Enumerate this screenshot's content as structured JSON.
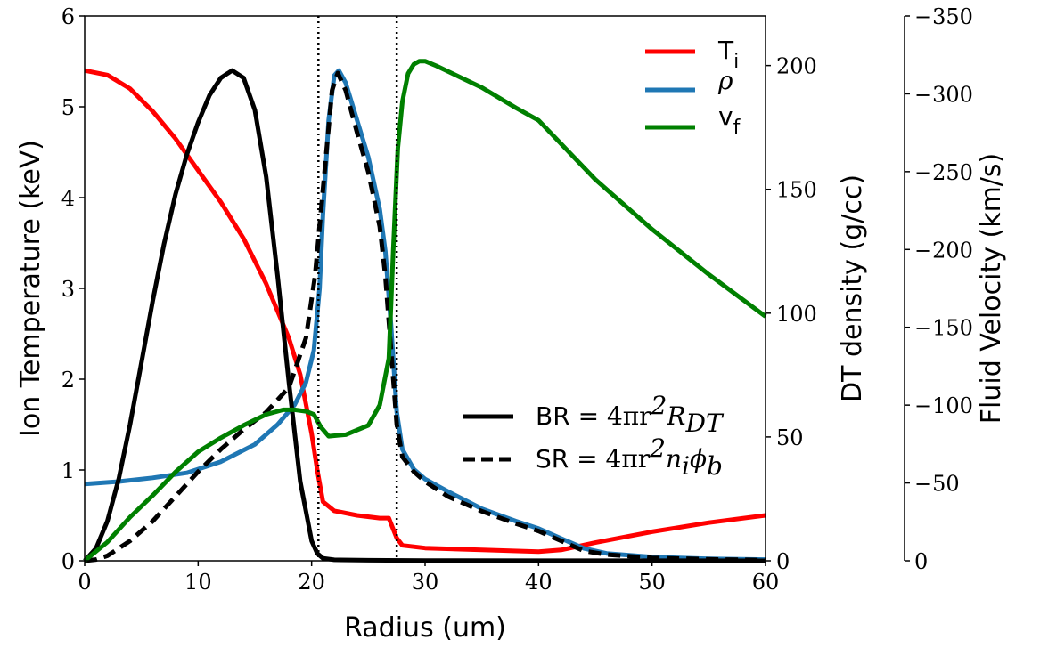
{
  "chart_data": {
    "type": "line",
    "xlabel": "Radius (um)",
    "ylabel_left": "Ion Temperature (keV)",
    "ylabel_right1": "DT density (g/cc)",
    "ylabel_right2": "Fluid Velocity (km/s)",
    "xlim": [
      0,
      60
    ],
    "ylim_left": [
      0,
      6
    ],
    "ylim_right1": [
      0,
      220
    ],
    "ylim_right2": [
      0,
      -350
    ],
    "x_ticks": [
      "0",
      "10",
      "20",
      "30",
      "40",
      "50",
      "60"
    ],
    "y_left_ticks": [
      "0",
      "1",
      "2",
      "3",
      "4",
      "5",
      "6"
    ],
    "y_right1_ticks": [
      "0",
      "50",
      "100",
      "150",
      "200"
    ],
    "y_right2_ticks": [
      "0",
      "−50",
      "−100",
      "−150",
      "−200",
      "−250",
      "−300",
      "−350"
    ],
    "vlines": [
      20.6,
      27.5
    ],
    "legend_top": [
      {
        "label_main": "T",
        "label_sub": "i",
        "color": "#ff0000"
      },
      {
        "label_main": "ρ",
        "label_sub": "",
        "color": "#1f77b4"
      },
      {
        "label_main": "v",
        "label_sub": "f",
        "color": "#008000"
      }
    ],
    "legend_bottom": [
      {
        "label_prefix": "BR = ",
        "label_math": "4πr²R₂ᵀ",
        "label_text": "4πr",
        "label_sup": "2",
        "label_tail": "R",
        "label_tail_sub": "DT",
        "style": "solid",
        "color": "#000000"
      },
      {
        "label_prefix": "SR = ",
        "label_math": "4πr²nᵢϕᵦ",
        "label_text": "4πr",
        "label_sup": "2",
        "label_tail": "n",
        "label_tail_sub": "i",
        "label_tail2": "ϕ",
        "label_tail2_sub": "b",
        "style": "dashed",
        "color": "#000000"
      }
    ],
    "series": [
      {
        "name": "T_i",
        "axis": "left",
        "color": "#ff0000",
        "x": [
          0,
          2,
          4,
          6,
          8,
          10,
          12,
          14,
          16,
          18,
          19,
          20,
          20.5,
          21,
          22,
          24,
          26,
          26.8,
          27.5,
          28,
          30,
          35,
          40,
          42,
          45,
          50,
          55,
          60
        ],
        "y": [
          5.4,
          5.35,
          5.2,
          4.95,
          4.65,
          4.3,
          3.95,
          3.55,
          3.05,
          2.45,
          2.05,
          1.4,
          1.0,
          0.65,
          0.55,
          0.5,
          0.47,
          0.47,
          0.25,
          0.17,
          0.14,
          0.12,
          0.1,
          0.12,
          0.2,
          0.32,
          0.42,
          0.5
        ]
      },
      {
        "name": "rho",
        "axis": "right1",
        "color": "#1f77b4",
        "x": [
          0,
          3,
          6,
          9,
          12,
          15,
          17,
          18.5,
          19.5,
          20.2,
          20.7,
          21,
          21.5,
          22,
          22.4,
          23,
          24,
          25,
          26,
          26.5,
          27,
          27.5,
          28,
          29,
          30,
          32,
          35,
          38,
          40,
          42,
          44,
          46,
          50,
          55,
          60
        ],
        "y": [
          31,
          32,
          33.5,
          35.5,
          40,
          47,
          55,
          63,
          72,
          85,
          110,
          140,
          178,
          196,
          198,
          193,
          178,
          163,
          142,
          125,
          95,
          60,
          45,
          37,
          33,
          28,
          21,
          16,
          13,
          9,
          5,
          3,
          1.5,
          0.8,
          0.5
        ]
      },
      {
        "name": "SR",
        "axis": "right1",
        "color": "#000000",
        "dash": true,
        "x": [
          0,
          1,
          2,
          4,
          6,
          8,
          10,
          12,
          14,
          16,
          18,
          19.5,
          20.3,
          21,
          21.8,
          22.3,
          23,
          24,
          25,
          26,
          26.5,
          27,
          27.5,
          28,
          29,
          30,
          32,
          35,
          38,
          40,
          42,
          44,
          46,
          50,
          55,
          60
        ],
        "y": [
          0,
          0.5,
          2,
          8,
          16,
          26,
          36,
          45,
          53,
          60,
          70,
          90,
          115,
          150,
          190,
          197,
          190,
          173,
          157,
          135,
          115,
          85,
          55,
          42,
          36,
          32,
          26,
          20,
          15,
          12,
          8,
          4,
          2.5,
          1.2,
          0.6,
          0.3
        ]
      },
      {
        "name": "BR",
        "axis": "right1",
        "color": "#000000",
        "x": [
          0,
          1,
          2,
          3,
          4,
          5,
          6,
          7,
          8,
          9,
          10,
          11,
          12,
          13,
          14,
          15,
          16,
          17,
          18,
          19,
          20,
          20.5,
          21,
          22,
          25,
          30,
          40,
          50,
          60
        ],
        "y": [
          0,
          5,
          16,
          33,
          55,
          80,
          105,
          128,
          148,
          164,
          177,
          188,
          195,
          198,
          195,
          182,
          155,
          115,
          72,
          32,
          8,
          3,
          1,
          0.4,
          0.2,
          0.1,
          0.05,
          0.03,
          0
        ]
      },
      {
        "name": "v_f",
        "axis": "right2",
        "color": "#008000",
        "x": [
          0,
          2,
          4,
          6,
          8,
          10,
          12,
          14,
          16,
          17.5,
          18.5,
          19.5,
          20.2,
          20.8,
          21.5,
          23,
          25,
          26,
          26.8,
          27.2,
          27.6,
          28,
          28.5,
          29,
          29.5,
          30,
          31,
          33,
          35,
          38,
          40,
          45,
          50,
          55,
          60
        ],
        "y": [
          0,
          -12,
          -28,
          -42,
          -57,
          -70,
          -79,
          -87,
          -94,
          -97,
          -97,
          -96,
          -94,
          -86,
          -80,
          -81,
          -87,
          -100,
          -130,
          -200,
          -265,
          -295,
          -313,
          -319,
          -321,
          -321,
          -318,
          -311,
          -304,
          -291,
          -283,
          -245,
          -213,
          -184,
          -157
        ]
      }
    ]
  }
}
